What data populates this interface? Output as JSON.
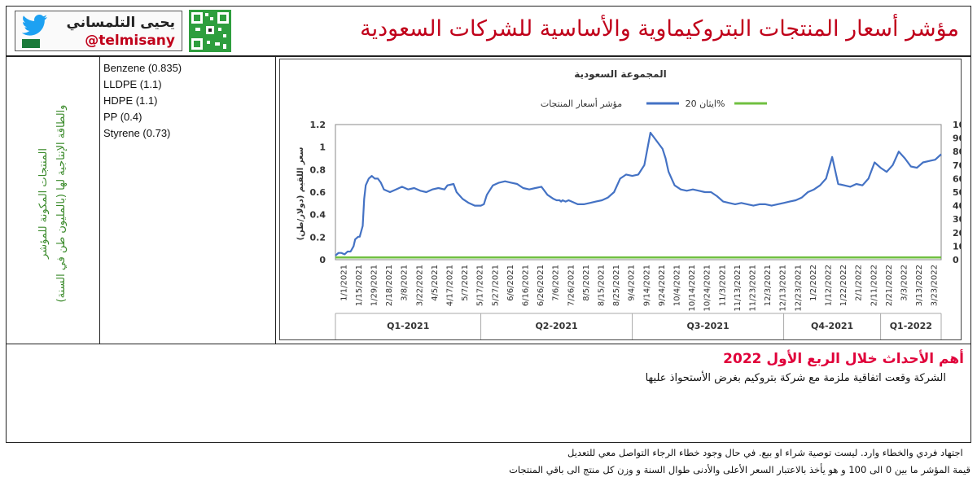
{
  "header": {
    "title": "مؤشر أسعار المنتجات البتروكيماوية والأساسية للشركات السعودية",
    "author_name": "يحيى التلمساني",
    "author_handle": "@telmisany"
  },
  "sidebar": {
    "label_line1": "المنتجات المكونة للمؤشر",
    "label_line2": "والطاقة الإنتاجية لها (بالمليون طن في السنة)"
  },
  "components": [
    "Benzene (0.835)",
    "LLDPE (1.1)",
    "HDPE (1.1)",
    "PP (0.4)",
    "Styrene (0.73)"
  ],
  "events": {
    "title": "أهم الأحداث خلال الربع الأول 2022",
    "text": "الشركة وقعت اتفاقية ملزمة مع شركة بتروكيم بغرض الأستحواذ عليها"
  },
  "footer": {
    "line1": "اجتهاد فردي والخطاء وارد. ليست توصية شراء او بيع. في حال وجود خطاء الرجاء التواصل معي للتعديل",
    "line2": "قيمة المؤشر ما بين 0 الى 100 و هو يأخذ بالاعتبار السعر الأعلى والأدنى طوال السنة و وزن كل منتج الى باقي المنتجات"
  },
  "colors": {
    "index_line": "#4472c4",
    "ethane_line": "#70c040",
    "title_red": "#c0001a"
  },
  "chart_data": {
    "type": "line",
    "title": "المجموعة السعودية",
    "legend": [
      "مؤشر أسعار المنتجات",
      "ايثان 20%"
    ],
    "legend_position": "top",
    "ylabel_left": "سعر اللقيم (دولار/طن)",
    "y_left_ticks": [
      "0",
      "0.2",
      "0.4",
      "0.6",
      "0.8",
      "1",
      "1.2"
    ],
    "y_left_range": [
      0,
      1.2
    ],
    "y_right_ticks": [
      "0",
      "10",
      "20",
      "30",
      "40",
      "50",
      "60",
      "70",
      "80",
      "90",
      "100"
    ],
    "y_right_range": [
      0,
      100
    ],
    "x_tick_labels": [
      "1/1/2021",
      "1/15/2021",
      "1/29/2021",
      "2/18/2021",
      "3/8/2021",
      "3/22/2021",
      "4/5/2021",
      "4/17/2021",
      "5/7/2021",
      "5/17/2021",
      "5/27/2021",
      "6/6/2021",
      "6/16/2021",
      "6/26/2021",
      "7/6/2021",
      "7/26/2021",
      "8/5/2021",
      "8/15/2021",
      "8/25/2021",
      "9/4/2021",
      "9/14/2021",
      "9/24/2021",
      "10/4/2021",
      "10/14/2021",
      "10/24/2021",
      "11/3/2021",
      "11/13/2021",
      "11/23/2021",
      "12/3/2021",
      "12/13/2021",
      "12/23/2021",
      "1/2/2022",
      "1/12/2022",
      "1/22/2022",
      "2/1/2022",
      "2/11/2022",
      "2/21/2022",
      "3/3/2022",
      "3/13/2022",
      "3/23/2022"
    ],
    "quarters": [
      "Q1-2021",
      "Q2-2021",
      "Q3-2021",
      "Q4-2021",
      "Q1-2022"
    ],
    "quarter_bounds": [
      0,
      0.24,
      0.49,
      0.74,
      0.9,
      1.0
    ],
    "series": [
      {
        "name": "مؤشر أسعار المنتجات",
        "axis": "right",
        "x": [
          0,
          0.01,
          0.02,
          0.03,
          0.04,
          0.05,
          0.06,
          0.065,
          0.075,
          0.08,
          0.09,
          0.095,
          0.1,
          0.11,
          0.12,
          0.13,
          0.14,
          0.15,
          0.16,
          0.18,
          0.2,
          0.22,
          0.24,
          0.26,
          0.28,
          0.3,
          0.32,
          0.34,
          0.36,
          0.37,
          0.39,
          0.4,
          0.42,
          0.44,
          0.46,
          0.48,
          0.49,
          0.5,
          0.52,
          0.54,
          0.56,
          0.58,
          0.6,
          0.62,
          0.64,
          0.66,
          0.68,
          0.7,
          0.72,
          0.73,
          0.74,
          0.745,
          0.75,
          0.76,
          0.77,
          0.78,
          0.8,
          0.82,
          0.84,
          0.86,
          0.88,
          0.9,
          0.92,
          0.94,
          0.96,
          0.98,
          1.0,
          1.02,
          1.04,
          1.06,
          1.08,
          1.09,
          1.095,
          1.1,
          1.11,
          1.12,
          1.14,
          1.16,
          1.18,
          1.2,
          1.22,
          1.24,
          1.26,
          1.28,
          1.3,
          1.32,
          1.34,
          1.36,
          1.38,
          1.4,
          1.42,
          1.44,
          1.46,
          1.48,
          1.5,
          1.52,
          1.54,
          1.56,
          1.58,
          1.6,
          1.62,
          1.64,
          1.66,
          1.68,
          1.7,
          1.72,
          1.74,
          1.76,
          1.78,
          1.8,
          1.82,
          1.84,
          1.86,
          1.88,
          1.9,
          1.92,
          1.94,
          1.96,
          1.98,
          2.0
        ],
        "values": [
          3,
          5,
          5,
          4,
          6,
          6,
          10,
          15,
          17,
          17,
          25,
          45,
          55,
          60,
          62,
          60,
          60,
          57,
          52,
          50,
          52,
          54,
          52,
          53,
          51,
          50,
          52,
          53,
          52,
          55,
          56,
          50,
          45,
          42,
          40,
          40,
          41,
          48,
          55,
          57,
          58,
          57,
          56,
          53,
          52,
          53,
          54,
          48,
          45,
          44,
          44,
          43,
          44,
          43,
          44,
          43,
          41,
          41,
          42,
          43,
          44,
          46,
          50,
          60,
          63,
          62,
          63,
          70,
          94,
          88,
          82,
          75,
          70,
          65,
          60,
          55,
          52,
          51,
          52,
          51,
          50,
          50,
          47,
          43,
          42,
          41,
          42,
          41,
          40,
          41,
          41,
          40,
          41,
          42,
          43,
          44,
          46,
          50,
          52,
          55,
          60,
          76,
          56,
          55,
          54,
          56,
          55,
          60,
          72,
          68,
          65,
          70,
          80,
          75,
          69,
          68,
          72,
          73,
          74,
          78
        ]
      },
      {
        "name": "ايثان 20%",
        "axis": "left",
        "x": [
          0,
          2.0
        ],
        "values": [
          0.02,
          0.02
        ]
      }
    ]
  }
}
